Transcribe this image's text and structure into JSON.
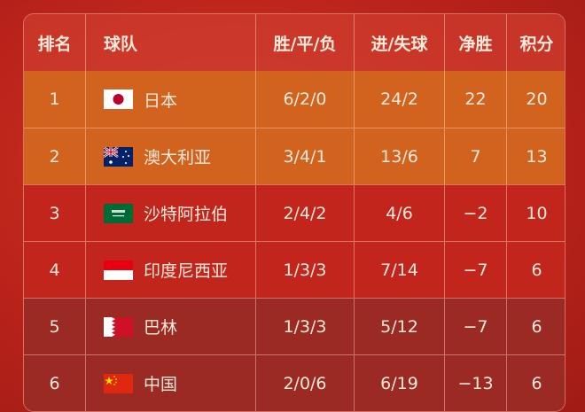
{
  "headers": [
    "排名",
    "球队",
    "胜/平/负",
    "进/失球",
    "净胜",
    "积分"
  ],
  "rows": [
    {
      "rank": "1",
      "team": "日本",
      "flag": "japan-flag-icon",
      "wdl": "6/2/0",
      "goals": "24/2",
      "gd": "22",
      "pts": "20"
    },
    {
      "rank": "2",
      "team": "澳大利亚",
      "flag": "australia-flag-icon",
      "wdl": "3/4/1",
      "goals": "13/6",
      "gd": "7",
      "pts": "13"
    },
    {
      "rank": "3",
      "team": "沙特阿拉伯",
      "flag": "saudi-arabia-flag-icon",
      "wdl": "2/4/2",
      "goals": "4/6",
      "gd": "−2",
      "pts": "10"
    },
    {
      "rank": "4",
      "team": "印度尼西亚",
      "flag": "indonesia-flag-icon",
      "wdl": "1/3/3",
      "goals": "7/14",
      "gd": "−7",
      "pts": "6"
    },
    {
      "rank": "5",
      "team": "巴林",
      "flag": "bahrain-flag-icon",
      "wdl": "1/3/3",
      "goals": "5/12",
      "gd": "−7",
      "pts": "6"
    },
    {
      "rank": "6",
      "team": "中国",
      "flag": "china-flag-icon",
      "wdl": "2/0/6",
      "goals": "6/19",
      "gd": "−13",
      "pts": "6"
    }
  ],
  "colors": {
    "top_rows": "#d2631f",
    "mid_rows": "#c2251c",
    "low_rows": "#9b2a24",
    "background": "#b8221a"
  }
}
